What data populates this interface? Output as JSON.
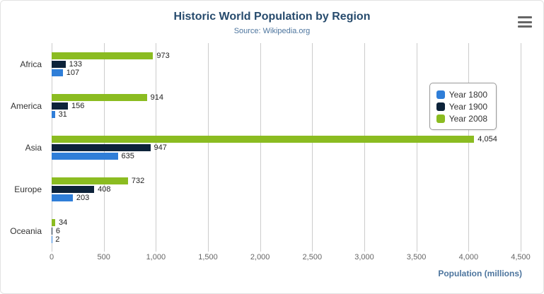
{
  "title": "Historic World Population by Region",
  "subtitle": "Source: Wikipedia.org",
  "export_menu": {
    "tooltip": "Chart context menu"
  },
  "chart_data": {
    "type": "bar",
    "title": "Historic World Population by Region",
    "subtitle": "Source: Wikipedia.org",
    "categories": [
      "Africa",
      "America",
      "Asia",
      "Europe",
      "Oceania"
    ],
    "series": [
      {
        "name": "Year 1800",
        "color": "#2f7ed8",
        "values": [
          107,
          31,
          635,
          203,
          2
        ]
      },
      {
        "name": "Year 1900",
        "color": "#0d233a",
        "values": [
          133,
          156,
          947,
          408,
          6
        ]
      },
      {
        "name": "Year 2008",
        "color": "#8bbc21",
        "values": [
          973,
          914,
          4054,
          732,
          34
        ]
      }
    ],
    "series_display_order_top_to_bottom": [
      "Year 2008",
      "Year 1900",
      "Year 1800"
    ],
    "xlabel": "Population (millions)",
    "ylabel": "",
    "xlim": [
      0,
      4500
    ],
    "xticks": [
      0,
      500,
      1000,
      1500,
      2000,
      2500,
      3000,
      3500,
      4000,
      4500
    ],
    "xtick_labels": [
      "0",
      "500",
      "1,000",
      "1,500",
      "2,000",
      "2,500",
      "3,000",
      "3,500",
      "4,000",
      "4,500"
    ],
    "grid": true,
    "legend_position": "right",
    "data_labels": true
  },
  "colors": {
    "title": "#274b6d",
    "subtitle": "#4d759e",
    "gridline": "#cccccc",
    "axis_label": "#666666",
    "axis_title": "#4d759e"
  }
}
